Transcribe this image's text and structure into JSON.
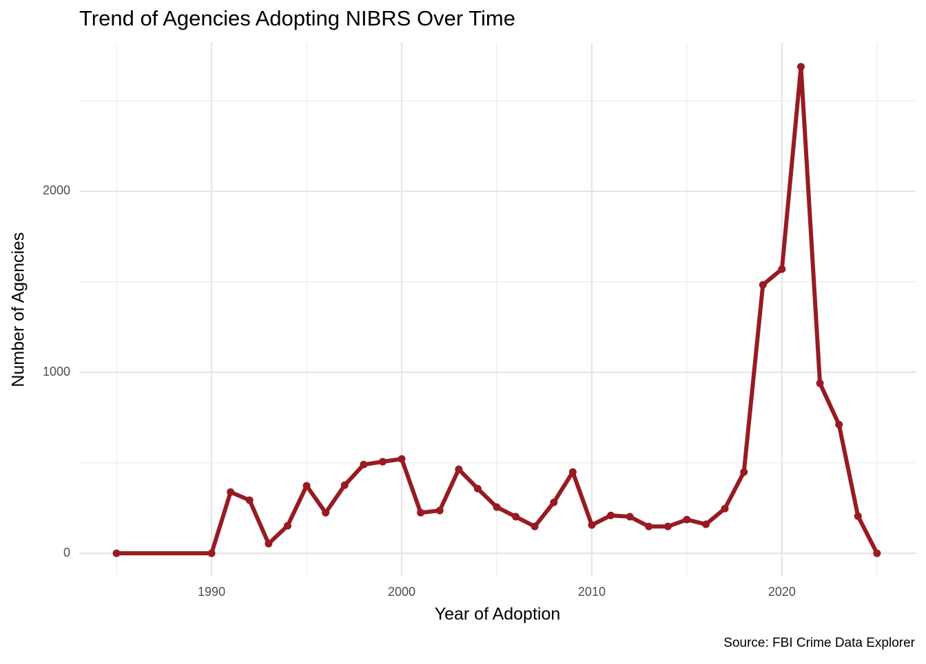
{
  "chart_data": {
    "type": "line",
    "title": "Trend of Agencies Adopting NIBRS Over Time",
    "x_label": "Year of Adoption",
    "y_label": "Number of Agencies",
    "caption": "Source: FBI Crime Data Explorer",
    "x": [
      1985,
      1990,
      1991,
      1992,
      1993,
      1994,
      1995,
      1996,
      1997,
      1998,
      1999,
      2000,
      2001,
      2002,
      2003,
      2004,
      2005,
      2006,
      2007,
      2008,
      2009,
      2010,
      2011,
      2012,
      2013,
      2014,
      2015,
      2016,
      2017,
      2018,
      2019,
      2020,
      2021,
      2022,
      2023,
      2024,
      2025
    ],
    "values": [
      0,
      0,
      338,
      293,
      53,
      152,
      373,
      224,
      376,
      490,
      506,
      521,
      224,
      236,
      464,
      357,
      255,
      202,
      148,
      281,
      449,
      156,
      209,
      202,
      148,
      148,
      186,
      160,
      247,
      449,
      1483,
      1570,
      2688,
      939,
      711,
      205,
      0
    ],
    "color": "#981b22",
    "xlim": [
      1983.04,
      2027.07
    ],
    "xticks": [
      1990,
      2000,
      2010,
      2020
    ],
    "ylim": [
      -129,
      2821
    ],
    "yticks": [
      0,
      1000,
      2000
    ],
    "grid": true
  }
}
